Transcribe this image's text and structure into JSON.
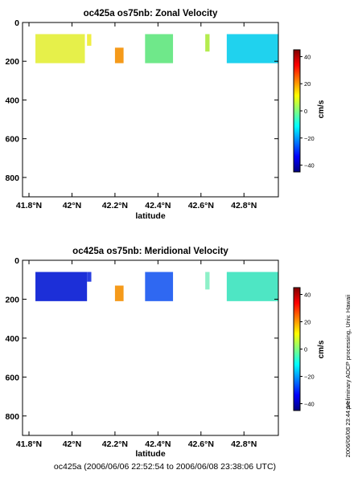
{
  "chart_data": [
    {
      "type": "heatmap",
      "title": "oc425a os75nb: Zonal Velocity",
      "xlabel": "latitude",
      "ylabel": "",
      "xlim": [
        41.77,
        42.96
      ],
      "ylim": [
        900,
        0
      ],
      "x_ticks": [
        "41.8°N",
        "42°N",
        "42.2°N",
        "42.4°N",
        "42.6°N",
        "42.8°N"
      ],
      "x_tick_values": [
        41.8,
        42.0,
        42.2,
        42.4,
        42.6,
        42.8
      ],
      "y_ticks": [
        "0",
        "200",
        "400",
        "600",
        "800"
      ],
      "y_tick_values": [
        0,
        200,
        400,
        600,
        800
      ],
      "colorbar": {
        "label": "cm/s",
        "range": [
          -45,
          45
        ],
        "ticks": [
          "40",
          "20",
          "0",
          "−20",
          "−40"
        ],
        "tick_values": [
          40,
          20,
          0,
          -20,
          -40
        ]
      },
      "regions": [
        {
          "name": "patch-1",
          "lat": [
            41.83,
            42.06
          ],
          "depth": [
            60,
            210
          ],
          "value_cm_s": 18,
          "color": "#e6f04a"
        },
        {
          "name": "patch-2",
          "lat": [
            42.07,
            42.09
          ],
          "depth": [
            60,
            120
          ],
          "value_cm_s": 20,
          "color": "#f0ee42"
        },
        {
          "name": "patch-3",
          "lat": [
            42.2,
            42.24
          ],
          "depth": [
            130,
            210
          ],
          "value_cm_s": 30,
          "color": "#f59a1a"
        },
        {
          "name": "patch-4",
          "lat": [
            42.34,
            42.47
          ],
          "depth": [
            60,
            210
          ],
          "value_cm_s": 5,
          "color": "#6fe88a"
        },
        {
          "name": "patch-5",
          "lat": [
            42.53,
            42.54
          ],
          "depth": [
            60,
            110
          ],
          "value_cm_s": 0,
          "color": "#ffffff"
        },
        {
          "name": "patch-6",
          "lat": [
            42.62,
            42.64
          ],
          "depth": [
            60,
            150
          ],
          "value_cm_s": 12,
          "color": "#b4ec4e"
        },
        {
          "name": "patch-7",
          "lat": [
            42.72,
            42.96
          ],
          "depth": [
            60,
            210
          ],
          "value_cm_s": -8,
          "color": "#20d2ee"
        }
      ]
    },
    {
      "type": "heatmap",
      "title": "oc425a os75nb: Meridional Velocity",
      "xlabel": "latitude",
      "ylabel": "",
      "xlim": [
        41.77,
        42.96
      ],
      "ylim": [
        900,
        0
      ],
      "x_ticks": [
        "41.8°N",
        "42°N",
        "42.2°N",
        "42.4°N",
        "42.6°N",
        "42.8°N"
      ],
      "x_tick_values": [
        41.8,
        42.0,
        42.2,
        42.4,
        42.6,
        42.8
      ],
      "y_ticks": [
        "0",
        "200",
        "400",
        "600",
        "800"
      ],
      "y_tick_values": [
        0,
        200,
        400,
        600,
        800
      ],
      "colorbar": {
        "label": "cm/s",
        "range": [
          -45,
          45
        ],
        "ticks": [
          "40",
          "20",
          "0",
          "−20",
          "−40"
        ],
        "tick_values": [
          40,
          20,
          0,
          -20,
          -40
        ]
      },
      "regions": [
        {
          "name": "patch-1",
          "lat": [
            41.83,
            42.07
          ],
          "depth": [
            60,
            210
          ],
          "value_cm_s": -40,
          "color": "#1c2fd8"
        },
        {
          "name": "patch-2",
          "lat": [
            42.07,
            42.09
          ],
          "depth": [
            60,
            110
          ],
          "value_cm_s": -38,
          "color": "#2a3fe0"
        },
        {
          "name": "patch-3",
          "lat": [
            42.2,
            42.24
          ],
          "depth": [
            130,
            210
          ],
          "value_cm_s": 30,
          "color": "#f59a1a"
        },
        {
          "name": "patch-4",
          "lat": [
            42.34,
            42.47
          ],
          "depth": [
            60,
            210
          ],
          "value_cm_s": -30,
          "color": "#2f68f2"
        },
        {
          "name": "patch-5",
          "lat": [
            42.53,
            42.54
          ],
          "depth": [
            60,
            100
          ],
          "value_cm_s": 0,
          "color": "#ffffff"
        },
        {
          "name": "patch-6",
          "lat": [
            42.62,
            42.64
          ],
          "depth": [
            60,
            150
          ],
          "value_cm_s": 0,
          "color": "#8ef0c8"
        },
        {
          "name": "patch-7",
          "lat": [
            42.72,
            42.96
          ],
          "depth": [
            60,
            210
          ],
          "value_cm_s": 3,
          "color": "#4ee6c4"
        }
      ]
    }
  ],
  "side_note": "preliminary ADCP processing,  Univ. Hawaii",
  "side_timestamp": "2006/06/08 23:44:14",
  "footer": "oc425a (2006/06/06 22:52:54 to 2006/06/08 23:38:06 UTC)"
}
